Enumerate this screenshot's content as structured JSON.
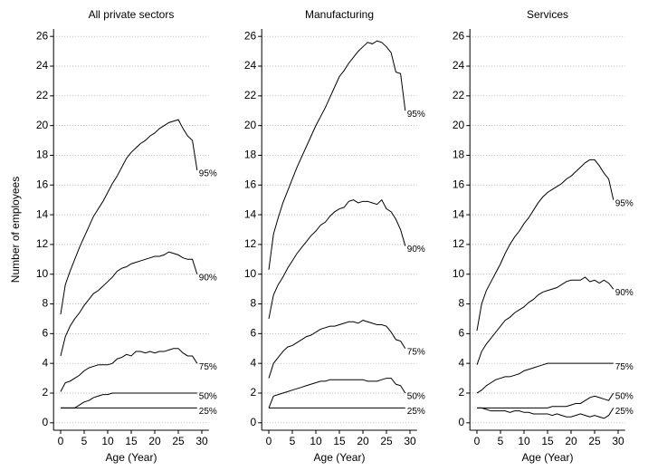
{
  "chart_data": [
    {
      "type": "line",
      "title": "All private sectors",
      "xlabel": "Age (Year)",
      "ylabel": "Number of employees",
      "x": [
        0,
        1,
        2,
        3,
        4,
        5,
        6,
        7,
        8,
        9,
        10,
        11,
        12,
        13,
        14,
        15,
        16,
        17,
        18,
        19,
        20,
        21,
        22,
        23,
        24,
        25,
        26,
        27,
        28,
        29
      ],
      "xlim": [
        -1.5,
        31.5
      ],
      "ylim": [
        -0.5,
        26.5
      ],
      "xticks": [
        0,
        5,
        10,
        15,
        20,
        25,
        30
      ],
      "yticks": [
        0,
        2,
        4,
        6,
        8,
        10,
        12,
        14,
        16,
        18,
        20,
        22,
        24,
        26
      ],
      "grid": true,
      "series": [
        {
          "name": "95%",
          "color": "#000000",
          "values": [
            7.3,
            9.3,
            10.2,
            11,
            11.8,
            12.5,
            13.2,
            13.9,
            14.4,
            14.9,
            15.5,
            16.1,
            16.6,
            17.2,
            17.8,
            18.2,
            18.5,
            18.8,
            19.0,
            19.3,
            19.5,
            19.8,
            20.0,
            20.2,
            20.3,
            20.4,
            19.8,
            19.3,
            19.0,
            17.0
          ]
        },
        {
          "name": "90%",
          "color": "#000000",
          "values": [
            4.5,
            5.8,
            6.5,
            7.0,
            7.4,
            7.9,
            8.3,
            8.7,
            8.9,
            9.2,
            9.5,
            9.8,
            10.2,
            10.4,
            10.5,
            10.7,
            10.8,
            10.9,
            11.0,
            11.1,
            11.2,
            11.2,
            11.3,
            11.5,
            11.4,
            11.3,
            11.1,
            11.0,
            11.0,
            10.0
          ]
        },
        {
          "name": "75%",
          "color": "#000000",
          "values": [
            2.1,
            2.7,
            2.8,
            3.0,
            3.2,
            3.5,
            3.7,
            3.8,
            3.9,
            3.9,
            3.9,
            4.0,
            4.3,
            4.4,
            4.6,
            4.5,
            4.8,
            4.8,
            4.7,
            4.8,
            4.7,
            4.8,
            4.8,
            4.9,
            5.0,
            5.0,
            4.7,
            4.5,
            4.5,
            4.0
          ]
        },
        {
          "name": "50%",
          "color": "#000000",
          "values": [
            1,
            1,
            1,
            1,
            1.2,
            1.4,
            1.5,
            1.7,
            1.8,
            1.9,
            1.9,
            2,
            2,
            2,
            2,
            2,
            2,
            2,
            2,
            2,
            2,
            2,
            2,
            2,
            2,
            2,
            2,
            2,
            2,
            2
          ]
        },
        {
          "name": "25%",
          "color": "#000000",
          "values": [
            1,
            1,
            1,
            1,
            1,
            1,
            1,
            1,
            1,
            1,
            1,
            1,
            1,
            1,
            1,
            1,
            1,
            1,
            1,
            1,
            1,
            1,
            1,
            1,
            1,
            1,
            1,
            1,
            1,
            1
          ]
        }
      ]
    },
    {
      "type": "line",
      "title": "Manufacturing",
      "xlabel": "Age (Year)",
      "x": [
        0,
        1,
        2,
        3,
        4,
        5,
        6,
        7,
        8,
        9,
        10,
        11,
        12,
        13,
        14,
        15,
        16,
        17,
        18,
        19,
        20,
        21,
        22,
        23,
        24,
        25,
        26,
        27,
        28,
        29
      ],
      "xlim": [
        -1.5,
        31.5
      ],
      "ylim": [
        -0.5,
        26.5
      ],
      "xticks": [
        0,
        5,
        10,
        15,
        20,
        25,
        30
      ],
      "yticks": [
        0,
        2,
        4,
        6,
        8,
        10,
        12,
        14,
        16,
        18,
        20,
        22,
        24,
        26
      ],
      "grid": true,
      "series": [
        {
          "name": "95%",
          "color": "#000000",
          "values": [
            10.3,
            12.7,
            13.8,
            14.8,
            15.6,
            16.4,
            17.2,
            17.9,
            18.6,
            19.3,
            20.0,
            20.6,
            21.2,
            21.9,
            22.6,
            23.3,
            23.7,
            24.2,
            24.6,
            25.0,
            25.3,
            25.6,
            25.5,
            25.7,
            25.6,
            25.3,
            24.9,
            23.6,
            23.5,
            21.0
          ]
        },
        {
          "name": "90%",
          "color": "#000000",
          "values": [
            7.0,
            8.6,
            9.3,
            9.8,
            10.4,
            10.9,
            11.4,
            11.8,
            12.2,
            12.6,
            12.9,
            13.3,
            13.5,
            13.9,
            14.2,
            14.4,
            14.5,
            14.9,
            15.0,
            14.8,
            14.9,
            14.9,
            14.8,
            14.7,
            15.0,
            14.4,
            14.2,
            13.7,
            13.0,
            11.9
          ]
        },
        {
          "name": "75%",
          "color": "#000000",
          "values": [
            3.0,
            4.0,
            4.4,
            4.8,
            5.1,
            5.2,
            5.4,
            5.6,
            5.8,
            5.9,
            6.1,
            6.3,
            6.4,
            6.5,
            6.5,
            6.6,
            6.7,
            6.8,
            6.8,
            6.7,
            6.9,
            6.8,
            6.7,
            6.6,
            6.6,
            6.5,
            6.1,
            5.6,
            5.5,
            5.0
          ]
        },
        {
          "name": "50%",
          "color": "#000000",
          "values": [
            1.0,
            1.8,
            1.9,
            2.0,
            2.1,
            2.2,
            2.3,
            2.4,
            2.5,
            2.6,
            2.7,
            2.8,
            2.8,
            2.9,
            2.9,
            2.9,
            2.9,
            2.9,
            2.9,
            2.9,
            2.9,
            2.8,
            2.8,
            2.8,
            2.9,
            3.0,
            3.0,
            2.6,
            2.5,
            2.0
          ]
        },
        {
          "name": "25%",
          "color": "#000000",
          "values": [
            1,
            1,
            1,
            1,
            1,
            1,
            1,
            1,
            1,
            1,
            1,
            1,
            1,
            1,
            1,
            1,
            1,
            1,
            1,
            1,
            1,
            1,
            1,
            1,
            1,
            1,
            1,
            1,
            1,
            1
          ]
        }
      ]
    },
    {
      "type": "line",
      "title": "Services",
      "xlabel": "Age (Year)",
      "x": [
        0,
        1,
        2,
        3,
        4,
        5,
        6,
        7,
        8,
        9,
        10,
        11,
        12,
        13,
        14,
        15,
        16,
        17,
        18,
        19,
        20,
        21,
        22,
        23,
        24,
        25,
        26,
        27,
        28,
        29
      ],
      "xlim": [
        -1.5,
        31.5
      ],
      "ylim": [
        -0.5,
        26.5
      ],
      "xticks": [
        0,
        5,
        10,
        15,
        20,
        25,
        30
      ],
      "yticks": [
        0,
        2,
        4,
        6,
        8,
        10,
        12,
        14,
        16,
        18,
        20,
        22,
        24,
        26
      ],
      "grid": true,
      "series": [
        {
          "name": "95%",
          "color": "#000000",
          "values": [
            6.2,
            8.0,
            8.9,
            9.5,
            10.1,
            10.7,
            11.4,
            12.0,
            12.5,
            12.9,
            13.4,
            13.8,
            14.3,
            14.8,
            15.2,
            15.5,
            15.7,
            15.9,
            16.1,
            16.4,
            16.6,
            16.9,
            17.2,
            17.5,
            17.7,
            17.7,
            17.3,
            16.8,
            16.4,
            15.0
          ]
        },
        {
          "name": "90%",
          "color": "#000000",
          "values": [
            3.9,
            4.8,
            5.3,
            5.7,
            6.1,
            6.5,
            6.9,
            7.1,
            7.4,
            7.6,
            7.8,
            8.1,
            8.3,
            8.6,
            8.8,
            8.9,
            9.0,
            9.1,
            9.3,
            9.5,
            9.6,
            9.6,
            9.6,
            9.8,
            9.5,
            9.6,
            9.4,
            9.6,
            9.4,
            9.0
          ]
        },
        {
          "name": "75%",
          "color": "#000000",
          "values": [
            2.0,
            2.2,
            2.5,
            2.7,
            2.9,
            3.0,
            3.1,
            3.1,
            3.2,
            3.3,
            3.5,
            3.6,
            3.7,
            3.8,
            3.9,
            4.0,
            4.0,
            4.0,
            4.0,
            4.0,
            4.0,
            4.0,
            4.0,
            4.0,
            4.0,
            4.0,
            4.0,
            4.0,
            4.0,
            4.0
          ]
        },
        {
          "name": "50%",
          "color": "#000000",
          "values": [
            1.0,
            1.0,
            1.0,
            1.0,
            1.0,
            1.0,
            1.0,
            1.0,
            1.0,
            1.0,
            1.0,
            1.0,
            1.0,
            1.0,
            1.0,
            1.0,
            1.1,
            1.1,
            1.1,
            1.1,
            1.2,
            1.3,
            1.3,
            1.5,
            1.7,
            1.8,
            1.7,
            1.6,
            1.5,
            2.0
          ]
        },
        {
          "name": "25%",
          "color": "#000000",
          "values": [
            1.0,
            1.0,
            0.9,
            0.8,
            0.8,
            0.8,
            0.8,
            0.7,
            0.8,
            0.8,
            0.7,
            0.7,
            0.6,
            0.6,
            0.6,
            0.6,
            0.5,
            0.6,
            0.5,
            0.4,
            0.4,
            0.5,
            0.6,
            0.5,
            0.4,
            0.5,
            0.4,
            0.3,
            0.5,
            1.0
          ]
        }
      ]
    }
  ]
}
